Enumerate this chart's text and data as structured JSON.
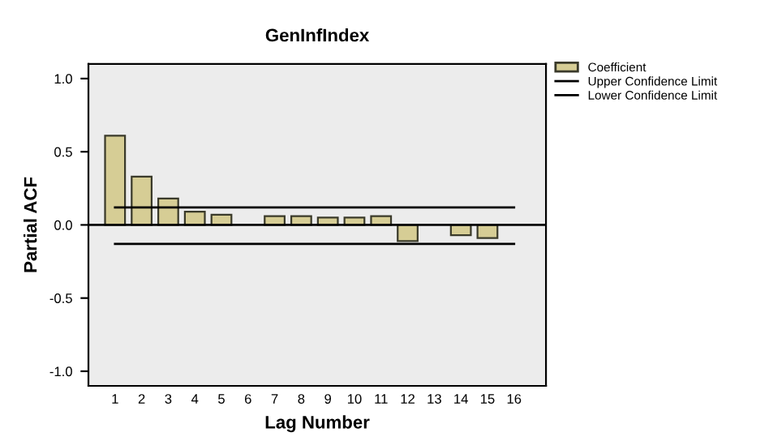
{
  "chart_data": {
    "type": "bar",
    "title": "GenInfIndex",
    "xlabel": "Lag Number",
    "ylabel": "Partial ACF",
    "categories": [
      "1",
      "2",
      "3",
      "4",
      "5",
      "6",
      "7",
      "8",
      "9",
      "10",
      "11",
      "12",
      "13",
      "14",
      "15",
      "16"
    ],
    "series": [
      {
        "name": "Coefficient",
        "color": "#d6cd95",
        "values": [
          0.61,
          0.33,
          0.18,
          0.09,
          0.07,
          null,
          0.06,
          0.06,
          0.05,
          0.05,
          0.06,
          -0.11,
          null,
          -0.07,
          -0.09,
          null
        ]
      },
      {
        "name": "Upper Confidence Limit",
        "type": "line",
        "color": "#000000",
        "values": [
          0.12,
          0.12,
          0.12,
          0.12,
          0.12,
          0.12,
          0.12,
          0.12,
          0.12,
          0.12,
          0.12,
          0.12,
          0.12,
          0.12,
          0.12,
          0.12
        ]
      },
      {
        "name": "Lower Confidence Limit",
        "type": "line",
        "color": "#000000",
        "values": [
          -0.13,
          -0.13,
          -0.13,
          -0.13,
          -0.13,
          -0.13,
          -0.13,
          -0.13,
          -0.13,
          -0.13,
          -0.13,
          -0.13,
          -0.13,
          -0.13,
          -0.13,
          -0.13
        ]
      }
    ],
    "ylim": [
      -1.1,
      1.1
    ],
    "yticks": [
      {
        "value": -1,
        "label": "-1.0"
      },
      -0.5,
      {
        "value": 0,
        "label": "0.0"
      },
      0.5,
      {
        "value": 1,
        "label": "1.0"
      }
    ],
    "ref_lines": [
      {
        "axis": "y",
        "value": 0,
        "label": null,
        "color": "#000000"
      }
    ],
    "grid": false,
    "legend": "right"
  }
}
